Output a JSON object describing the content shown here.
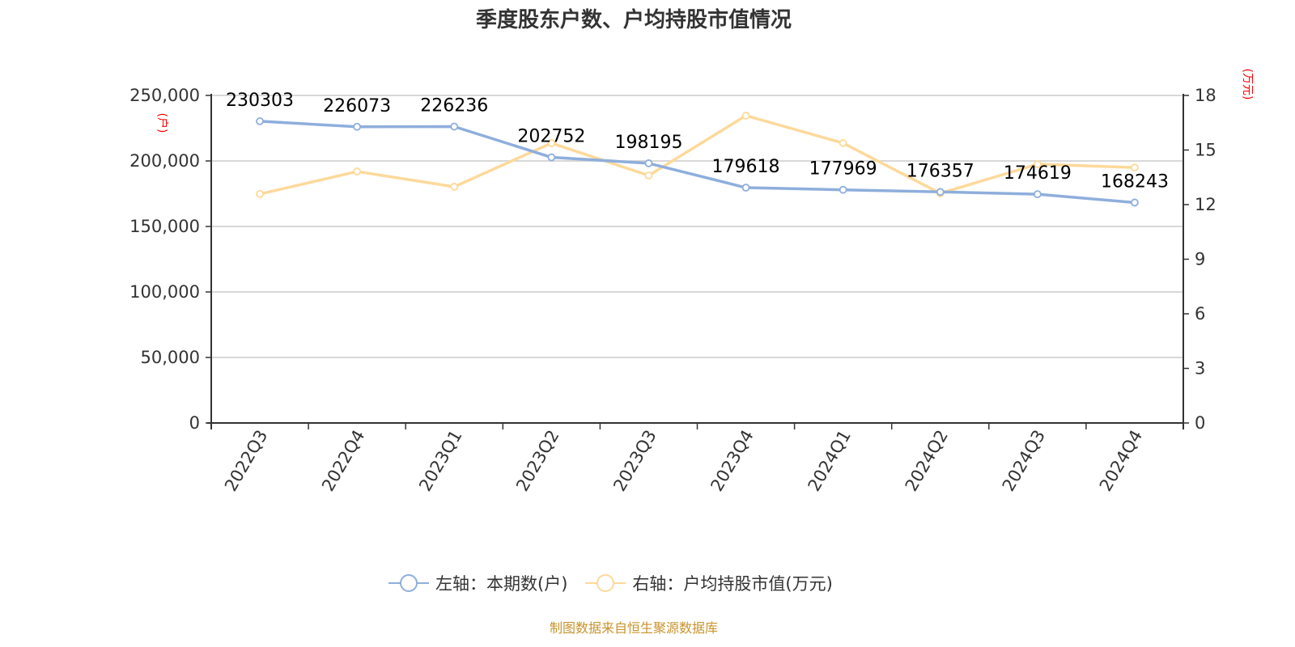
{
  "title": "季度股东户数、户均持股市值情况",
  "left_axis_unit": "(户)",
  "right_axis_unit": "(万元)",
  "legend": [
    {
      "label": "左轴：本期数(户)",
      "color": "#8eaedc"
    },
    {
      "label": "右轴：户均持股市值(万元)",
      "color": "#fdd99a"
    }
  ],
  "source_note": "制图数据来自恒生聚源数据库",
  "colors": {
    "series_left": "#8eaedc",
    "series_right": "#fdd99a",
    "axis_unit_label": "#ff0000",
    "source_note": "#c8932c",
    "grid": "#cccccc",
    "axis": "#333333"
  },
  "chart_data": {
    "type": "line",
    "title": "季度股东户数、户均持股市值情况",
    "categories": [
      "2022Q3",
      "2022Q4",
      "2023Q1",
      "2023Q2",
      "2023Q3",
      "2023Q4",
      "2024Q1",
      "2024Q2",
      "2024Q3",
      "2024Q4"
    ],
    "series": [
      {
        "name": "左轴：本期数(户)",
        "axis": "left",
        "values": [
          230303,
          226073,
          226236,
          202752,
          198195,
          179618,
          177969,
          176357,
          174619,
          168243
        ],
        "data_labels": true
      },
      {
        "name": "右轴：户均持股市值(万元)",
        "axis": "right",
        "values": [
          12.58,
          13.82,
          12.98,
          15.38,
          13.6,
          16.89,
          15.38,
          12.62,
          14.22,
          14.04
        ],
        "data_labels": false
      }
    ],
    "y_left": {
      "label": "(户)",
      "ticks": [
        "0",
        "50,000",
        "100,000",
        "150,000",
        "200,000",
        "250,000"
      ],
      "ylim": [
        0,
        250000
      ]
    },
    "y_right": {
      "label": "(万元)",
      "ticks": [
        "0",
        "3",
        "6",
        "9",
        "12",
        "15",
        "18"
      ],
      "ylim": [
        0,
        18
      ]
    },
    "xlabel": "",
    "grid": true,
    "legend_position": "bottom"
  }
}
